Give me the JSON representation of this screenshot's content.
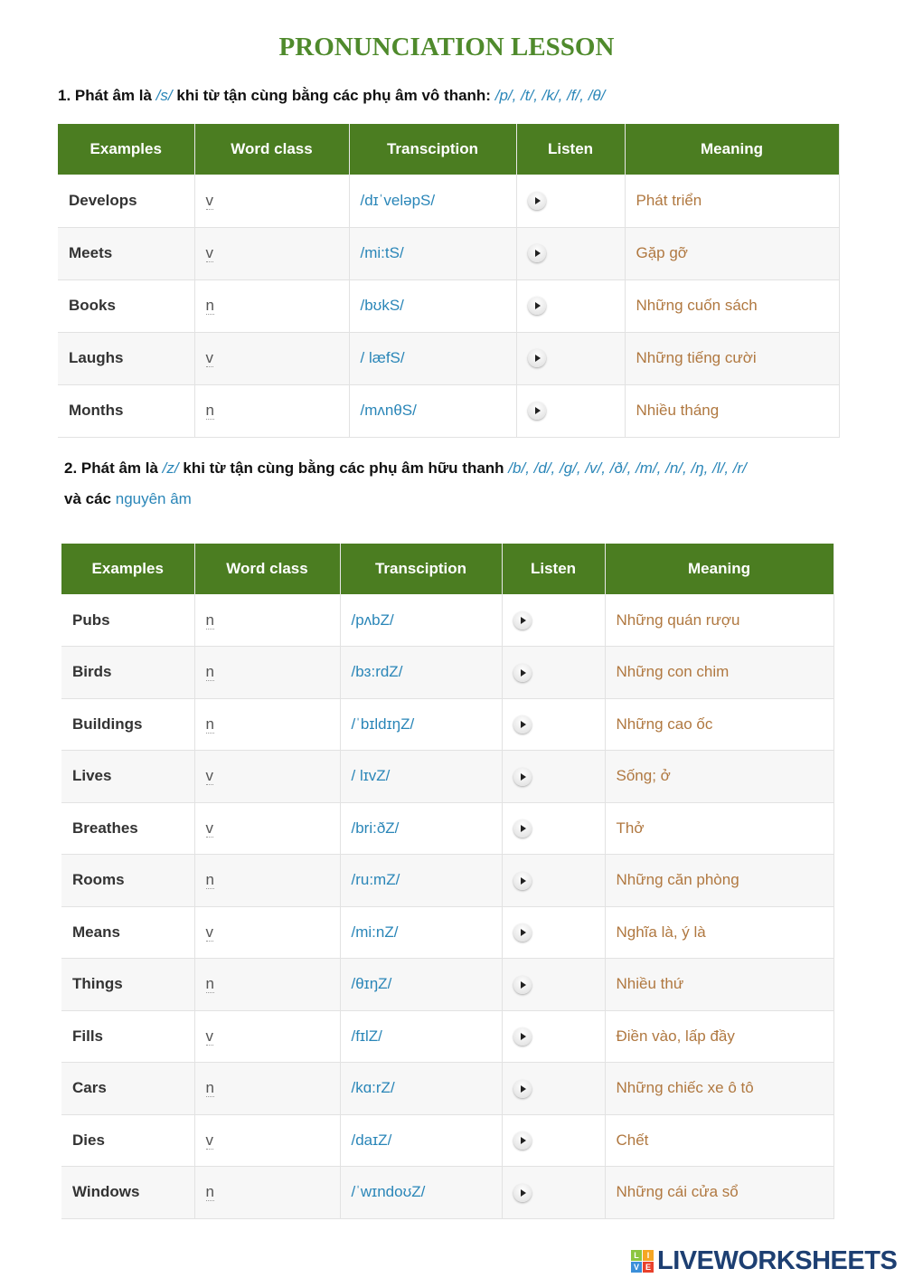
{
  "title": "PRONUNCIATION LESSON",
  "section1": {
    "lead": "1. Phát âm là",
    "sound": "/s/",
    "mid": "khi từ tận cùng bằng các phụ âm vô thanh:",
    "list": "/p/, /t/, /k/, /f/, /θ/"
  },
  "section2": {
    "lead": "2. Phát âm là",
    "sound": "/z/",
    "mid": "khi từ tận cùng bằng các phụ âm hữu thanh",
    "list": "/b/, /d/, /g/, /v/, /ð/, /m/, /n/, /ŋ, /l/, /r/",
    "line2_lead": "và các",
    "line2_link": "nguyên âm"
  },
  "headers": [
    "Examples",
    "Word class",
    "Transciption",
    "Listen",
    "Meaning"
  ],
  "table1": [
    [
      "Develops",
      "v",
      "/dɪˈveləpS/",
      "Phát triển"
    ],
    [
      "Meets",
      "v",
      "/mi:tS/",
      "Gặp gỡ"
    ],
    [
      "Books",
      "n",
      "/bʊkS/",
      "Những cuốn sách"
    ],
    [
      "Laughs",
      "v",
      "/ læfS/",
      "Những tiếng cười"
    ],
    [
      "Months",
      "n",
      "/mʌnθS/",
      "Nhiều tháng"
    ]
  ],
  "table2": [
    [
      "Pubs",
      "n",
      "/pʌbZ/",
      "Những quán rượu"
    ],
    [
      "Birds",
      "n",
      "/bɜ:rdZ/",
      "Những con chim"
    ],
    [
      "Buildings",
      "n",
      "/ˈbɪldɪŋZ/",
      "Những cao ốc"
    ],
    [
      "Lives",
      "v",
      "/ lɪvZ/",
      "Sống; ở"
    ],
    [
      "Breathes",
      "v",
      "/bri:ðZ/",
      "Thở"
    ],
    [
      "Rooms",
      "n",
      "/ru:mZ/",
      "Những căn phòng"
    ],
    [
      "Means",
      "v",
      "/mi:nZ/",
      "Nghĩa là, ý là"
    ],
    [
      "Things",
      "n",
      "/θɪŋZ/",
      "Nhiều thứ"
    ],
    [
      "Fills",
      "v",
      "/fɪlZ/",
      "Điền vào, lấp đầy"
    ],
    [
      "Cars",
      "n",
      "/kɑ:rZ/",
      "Những chiếc xe ô tô"
    ],
    [
      "Dies",
      "v",
      "/daɪZ/",
      "Chết"
    ],
    [
      "Windows",
      "n",
      "/ˈwɪndoʊZ/",
      "Những cái cửa sổ"
    ]
  ],
  "listen_icon": "play-icon",
  "logo": {
    "text": "LIVEWORKSHEETS",
    "letters": [
      "L",
      "I",
      "V",
      "E"
    ]
  },
  "colors": {
    "header_bg": "#4b7d21",
    "title": "#4f8a2c",
    "transcription": "#2a86b8",
    "meaning": "#b07840"
  }
}
